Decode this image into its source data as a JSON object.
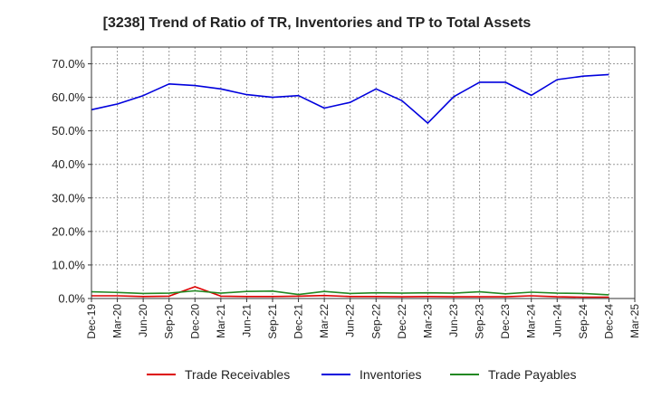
{
  "chart_data": {
    "type": "line",
    "title": "[3238]  Trend of Ratio of TR, Inventories and TP to Total Assets",
    "xlabel": "",
    "ylabel": "",
    "x_tick_labels": [
      "Dec-19",
      "Mar-20",
      "Jun-20",
      "Sep-20",
      "Dec-20",
      "Mar-21",
      "Jun-21",
      "Sep-21",
      "Dec-21",
      "Mar-22",
      "Jun-22",
      "Sep-22",
      "Dec-22",
      "Mar-23",
      "Jun-23",
      "Sep-23",
      "Dec-23",
      "Mar-24",
      "Jun-24",
      "Sep-24",
      "Dec-24",
      "Mar-25"
    ],
    "y_tick_labels": [
      "0.0%",
      "10.0%",
      "20.0%",
      "30.0%",
      "40.0%",
      "50.0%",
      "60.0%",
      "70.0%"
    ],
    "ylim": [
      0,
      75
    ],
    "y_ticks": [
      0,
      10,
      20,
      30,
      40,
      50,
      60,
      70
    ],
    "grid": true,
    "legend_position": "bottom",
    "categories": [
      "Dec-19",
      "Mar-20",
      "Jun-20",
      "Sep-20",
      "Dec-20",
      "Mar-21",
      "Jun-21",
      "Sep-21",
      "Dec-21",
      "Mar-22",
      "Jun-22",
      "Sep-22",
      "Dec-22",
      "Mar-23",
      "Jun-23",
      "Sep-23",
      "Dec-23",
      "Mar-24",
      "Jun-24",
      "Sep-24",
      "Dec-24"
    ],
    "series": [
      {
        "name": "Trade Receivables",
        "color": "#dd0000",
        "values": [
          0.8,
          0.8,
          0.6,
          0.7,
          3.5,
          0.7,
          0.6,
          0.6,
          0.7,
          0.9,
          0.6,
          0.6,
          0.5,
          0.6,
          0.5,
          0.5,
          0.5,
          0.8,
          0.5,
          0.4,
          0.4
        ]
      },
      {
        "name": "Inventories",
        "color": "#0000dd",
        "values": [
          56.3,
          58.0,
          60.5,
          64.0,
          63.5,
          62.5,
          60.8,
          60.0,
          60.5,
          56.8,
          58.5,
          62.5,
          59.0,
          52.3,
          60.2,
          64.5,
          64.5,
          60.6,
          65.3,
          66.3,
          66.8
        ]
      },
      {
        "name": "Trade Payables",
        "color": "#228822",
        "values": [
          2.0,
          1.8,
          1.5,
          1.6,
          2.3,
          1.6,
          2.1,
          2.2,
          1.2,
          2.1,
          1.5,
          1.7,
          1.6,
          1.7,
          1.6,
          2.0,
          1.4,
          1.9,
          1.6,
          1.5,
          1.1
        ]
      }
    ]
  }
}
